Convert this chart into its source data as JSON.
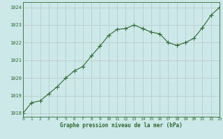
{
  "x": [
    0,
    1,
    2,
    3,
    4,
    5,
    6,
    7,
    8,
    9,
    10,
    11,
    12,
    13,
    14,
    15,
    16,
    17,
    18,
    19,
    20,
    21,
    22,
    23
  ],
  "y": [
    1018.0,
    1018.6,
    1018.7,
    1019.1,
    1019.5,
    1020.0,
    1020.4,
    1020.65,
    1021.25,
    1021.8,
    1022.4,
    1022.75,
    1022.8,
    1023.0,
    1022.8,
    1022.6,
    1022.5,
    1022.0,
    1021.85,
    1022.0,
    1022.25,
    1022.85,
    1023.55,
    1024.0
  ],
  "line_color": "#2d6a2d",
  "marker": "+",
  "marker_size": 4,
  "bg_color": "#cce8e8",
  "grid_color": "#bbcccc",
  "xlabel": "Graphe pression niveau de la mer (hPa)",
  "xlabel_color": "#2d6a2d",
  "ylabel_ticks": [
    1018,
    1019,
    1020,
    1021,
    1022,
    1023,
    1024
  ],
  "xlim": [
    0,
    23
  ],
  "ylim": [
    1017.8,
    1024.3
  ],
  "xticks": [
    0,
    1,
    2,
    3,
    4,
    5,
    6,
    7,
    8,
    9,
    10,
    11,
    12,
    13,
    14,
    15,
    16,
    17,
    18,
    19,
    20,
    21,
    22,
    23
  ],
  "tick_color": "#2d6a2d",
  "tick_label_color": "#2d6a2d",
  "spine_color": "#2d6a2d",
  "axis_bg": "#cce8e8",
  "fig_width": 3.2,
  "fig_height": 2.0,
  "dpi": 100
}
